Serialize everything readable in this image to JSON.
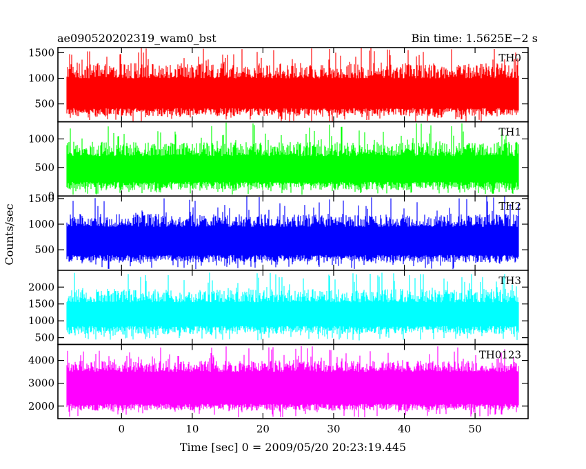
{
  "chart_data": {
    "type": "line",
    "title_left": "ae090520202319_wam0_bst",
    "title_right": "Bin time: 1.5625E−2 s",
    "xlabel": "Time [sec] 0 = 2009/05/20 20:23:19.445",
    "ylabel": "Counts/sec",
    "xlim": [
      -9,
      57.5
    ],
    "x_ticks": [
      0,
      10,
      20,
      30,
      40,
      50
    ],
    "x_tick_labels": [
      "0",
      "10",
      "20",
      "30",
      "40",
      "50"
    ],
    "data_range": [
      -7.8,
      56.2
    ],
    "bin_time": 0.015625,
    "panels": [
      {
        "name": "TH0",
        "color": "#ff0000",
        "ylim": [
          150,
          1600
        ],
        "ticks": [
          500,
          1000,
          1500
        ],
        "tick_labels": [
          "500",
          "1000",
          "1500"
        ],
        "median": 700,
        "upper": [
          1000,
          1300,
          1600
        ],
        "lower": [
          420,
          260,
          160
        ]
      },
      {
        "name": "TH1",
        "color": "#00ff00",
        "ylim": [
          0,
          1300
        ],
        "ticks": [
          0,
          500,
          1000
        ],
        "tick_labels": [
          "0",
          "500",
          "1000"
        ],
        "median": 450,
        "upper": [
          700,
          950,
          1300
        ],
        "lower": [
          250,
          100,
          20
        ]
      },
      {
        "name": "TH2",
        "color": "#0000ff",
        "ylim": [
          100,
          1550
        ],
        "ticks": [
          500,
          1000,
          1500
        ],
        "tick_labels": [
          "500",
          "1000",
          "1500"
        ],
        "median": 650,
        "upper": [
          950,
          1200,
          1550
        ],
        "lower": [
          400,
          250,
          120
        ]
      },
      {
        "name": "TH3",
        "color": "#00ffff",
        "ylim": [
          300,
          2500
        ],
        "ticks": [
          500,
          1000,
          1500,
          2000
        ],
        "tick_labels": [
          "500",
          "1000",
          "1500",
          "2000"
        ],
        "median": 1200,
        "upper": [
          1550,
          1950,
          2450
        ],
        "lower": [
          850,
          600,
          420
        ]
      },
      {
        "name": "TH0123",
        "color": "#ff00ff",
        "ylim": [
          1450,
          4700
        ],
        "ticks": [
          2000,
          3000,
          4000
        ],
        "tick_labels": [
          "2000",
          "3000",
          "4000"
        ],
        "median": 2800,
        "upper": [
          3500,
          4000,
          4650
        ],
        "lower": [
          2100,
          1800,
          1500
        ]
      }
    ]
  }
}
